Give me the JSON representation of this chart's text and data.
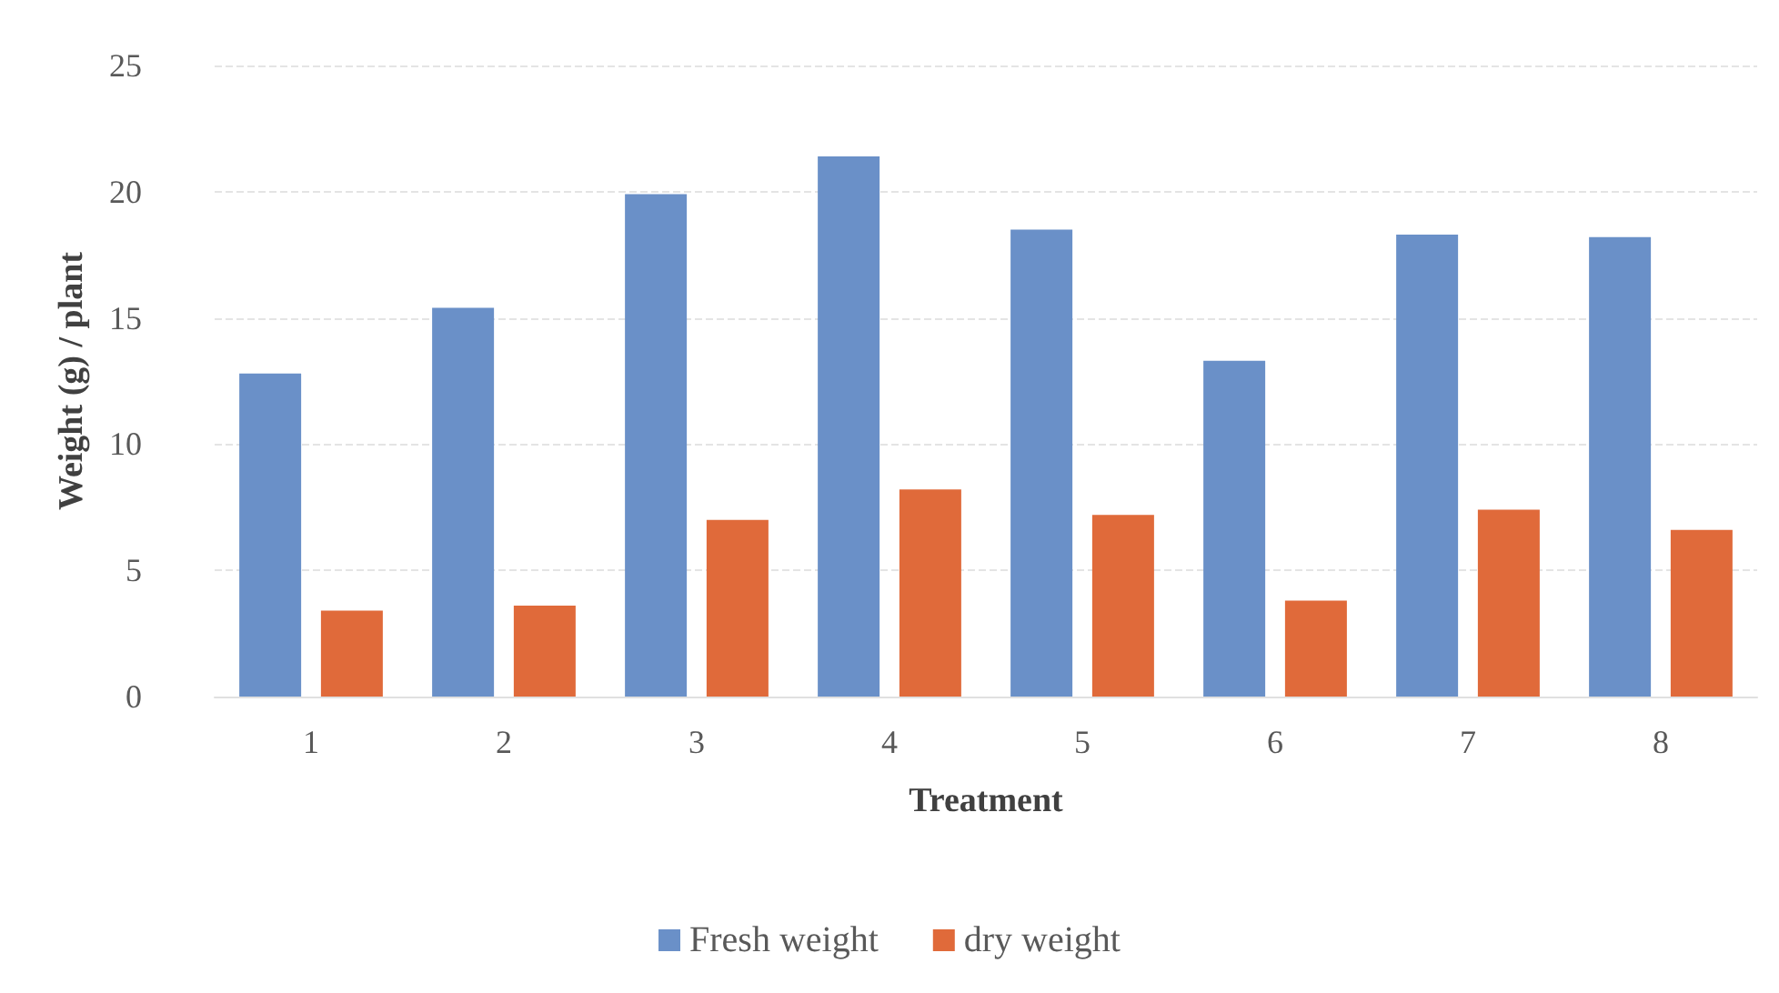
{
  "chart_data": {
    "type": "bar",
    "xlabel": "Treatment",
    "ylabel": "Weight (g) / plant",
    "categories": [
      "1",
      "2",
      "3",
      "4",
      "5",
      "6",
      "7",
      "8"
    ],
    "series": [
      {
        "name": "Fresh weight",
        "color": "#6a90c8",
        "values": [
          12.8,
          15.4,
          19.9,
          21.4,
          18.5,
          13.3,
          18.3,
          18.2
        ]
      },
      {
        "name": "dry weight",
        "color": "#e06a3a",
        "values": [
          3.4,
          3.6,
          7.0,
          8.2,
          7.2,
          3.8,
          7.4,
          6.6
        ]
      }
    ],
    "ylim": [
      0,
      25
    ],
    "yticks": [
      0,
      5,
      10,
      15,
      20,
      25
    ],
    "grid": "y",
    "legend": "bottom"
  }
}
